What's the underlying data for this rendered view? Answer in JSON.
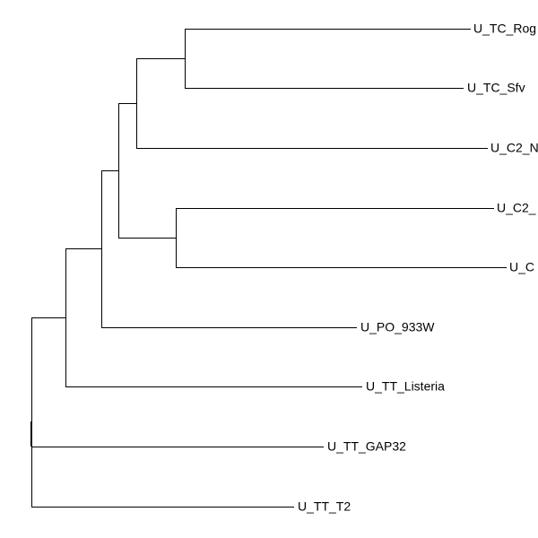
{
  "nodes": [
    {
      "label": "U_TC_Rog"
    },
    {
      "label": "U_TC_Sfv"
    },
    {
      "label": "U_C2_N"
    },
    {
      "label": "U_C2_"
    },
    {
      "label": "U_C"
    },
    {
      "label": "U_PO_933W"
    },
    {
      "label": "U_TT_Listeria"
    },
    {
      "label": "U_TT_GAP32"
    },
    {
      "label": "U_TT_T2"
    }
  ]
}
